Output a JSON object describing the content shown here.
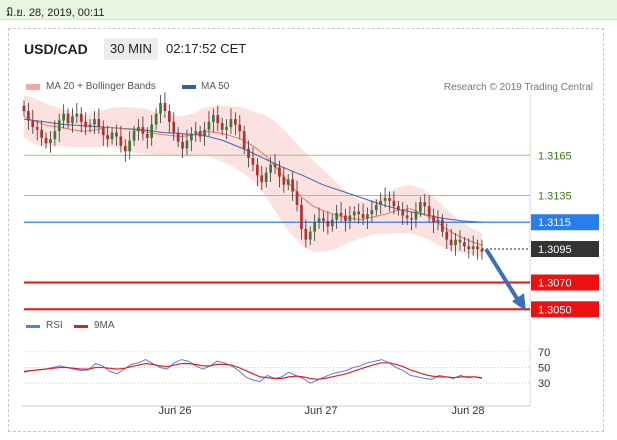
{
  "timestamp": "มิ.ย. 28, 2019, 00:11",
  "header": {
    "symbol": "USD/CAD",
    "timeframe": "30 MIN",
    "time": "02:17:52 CET"
  },
  "legend": {
    "ma20_label": "MA 20 + Bollinger Bands",
    "ma50_label": "MA 50",
    "credit": "Research © 2019 Trading Central"
  },
  "rsi_legend": {
    "rsi_label": "RSI",
    "ma_label": "9MA"
  },
  "colors": {
    "bull": "#3a7a36",
    "bear": "#b23030",
    "ma20": "#e87a6a",
    "band": "#fbdcdc",
    "ma50": "#4466aa",
    "resist": "#9cc87a",
    "support": "#ee1010",
    "current": "#2b7de9",
    "price_tag": "#333333",
    "arrow": "#3b6fb6",
    "rsi": "#5b7fd8",
    "rsi_ma": "#d22"
  },
  "chart_data": [
    {
      "type": "line",
      "title": "USD/CAD 30 MIN",
      "chart_kind": "candlestick",
      "x_ticks": [
        "Jun 26",
        "Jun 27",
        "Jun 28"
      ],
      "y_range": [
        1.3045,
        1.321
      ],
      "candles_note": "approximate close prices, one per 30-min bar",
      "series": [
        {
          "name": "USD/CAD",
          "close": [
            1.3198,
            1.3191,
            1.3186,
            1.3184,
            1.3178,
            1.3174,
            1.3177,
            1.3183,
            1.3191,
            1.3196,
            1.3189,
            1.3194,
            1.3196,
            1.319,
            1.3186,
            1.3188,
            1.3192,
            1.3186,
            1.318,
            1.3177,
            1.3182,
            1.3179,
            1.3172,
            1.3168,
            1.3176,
            1.3183,
            1.3186,
            1.3181,
            1.3178,
            1.3188,
            1.3196,
            1.3204,
            1.3198,
            1.319,
            1.3182,
            1.3175,
            1.317,
            1.3176,
            1.3181,
            1.3183,
            1.3179,
            1.3184,
            1.319,
            1.3195,
            1.3189,
            1.3184,
            1.3186,
            1.3192,
            1.3188,
            1.3183,
            1.317,
            1.3163,
            1.3158,
            1.315,
            1.3145,
            1.3152,
            1.3158,
            1.3156,
            1.3149,
            1.3143,
            1.3147,
            1.3138,
            1.3128,
            1.311,
            1.3102,
            1.3108,
            1.3115,
            1.3118,
            1.3116,
            1.3112,
            1.3117,
            1.3122,
            1.312,
            1.3116,
            1.312,
            1.3123,
            1.3121,
            1.3118,
            1.3121,
            1.3124,
            1.3128,
            1.3131,
            1.3133,
            1.3131,
            1.3127,
            1.3124,
            1.312,
            1.3118,
            1.3117,
            1.3123,
            1.313,
            1.3127,
            1.312,
            1.3115,
            1.3117,
            1.3108,
            1.3102,
            1.3098,
            1.3102,
            1.31,
            1.3097,
            1.3095,
            1.3097,
            1.3095,
            1.3093
          ]
        },
        {
          "name": "MA 20",
          "values": [
            1.3194,
            1.319,
            1.3187,
            1.3186,
            1.3184,
            1.3183,
            1.3184,
            1.3186,
            1.3185,
            1.3184,
            1.3183,
            1.3181,
            1.318,
            1.3179,
            1.318,
            1.3183,
            1.3182,
            1.318,
            1.3177,
            1.3172,
            1.3165,
            1.3155,
            1.3144,
            1.3134,
            1.3127,
            1.3123,
            1.312,
            1.3118,
            1.3117,
            1.3119,
            1.3121,
            1.3124,
            1.3125,
            1.3122,
            1.3117,
            1.311,
            1.3105,
            1.3101,
            1.3098
          ]
        },
        {
          "name": "MA 50",
          "values": [
            1.3192,
            1.319,
            1.3188,
            1.3187,
            1.3186,
            1.3185,
            1.3184,
            1.3182,
            1.3181,
            1.318,
            1.3176,
            1.317,
            1.3163,
            1.3156,
            1.315,
            1.3143,
            1.3138,
            1.3133,
            1.3128,
            1.3124,
            1.3121,
            1.3118,
            1.3116,
            1.3115
          ]
        }
      ],
      "levels": [
        {
          "value": "1.3165",
          "kind": "resistance"
        },
        {
          "value": "1.3135",
          "kind": "resistance"
        },
        {
          "value": "1.3115",
          "kind": "current"
        },
        {
          "value": "1.3095",
          "kind": "price"
        },
        {
          "value": "1.3070",
          "kind": "support"
        },
        {
          "value": "1.3050",
          "kind": "support"
        }
      ]
    },
    {
      "type": "line",
      "title": "RSI",
      "y_ticks": [
        "70",
        "50",
        "30"
      ],
      "y_range": [
        15,
        85
      ],
      "series": [
        {
          "name": "RSI",
          "values": [
            44,
            46,
            47,
            48,
            50,
            52,
            50,
            48,
            46,
            47,
            55,
            52,
            45,
            42,
            48,
            54,
            56,
            60,
            55,
            50,
            48,
            56,
            60,
            58,
            52,
            48,
            52,
            58,
            56,
            52,
            46,
            38,
            34,
            32,
            40,
            36,
            38,
            44,
            40,
            36,
            30,
            34,
            38,
            42,
            44,
            46,
            50,
            52,
            56,
            58,
            60,
            56,
            50,
            46,
            40,
            38,
            36,
            35,
            40,
            38,
            36,
            40,
            37,
            38,
            36
          ]
        },
        {
          "name": "9MA",
          "values": [
            45,
            46,
            47,
            48,
            49,
            50,
            50,
            49,
            48,
            48,
            50,
            50,
            49,
            48,
            49,
            51,
            53,
            55,
            54,
            52,
            51,
            53,
            55,
            55,
            54,
            52,
            52,
            54,
            54,
            53,
            50,
            46,
            42,
            38,
            37,
            36,
            36,
            38,
            39,
            38,
            36,
            35,
            36,
            38,
            40,
            42,
            45,
            48,
            51,
            54,
            56,
            56,
            54,
            51,
            47,
            44,
            41,
            39,
            38,
            38,
            37,
            38,
            38,
            38,
            37
          ]
        }
      ]
    }
  ]
}
